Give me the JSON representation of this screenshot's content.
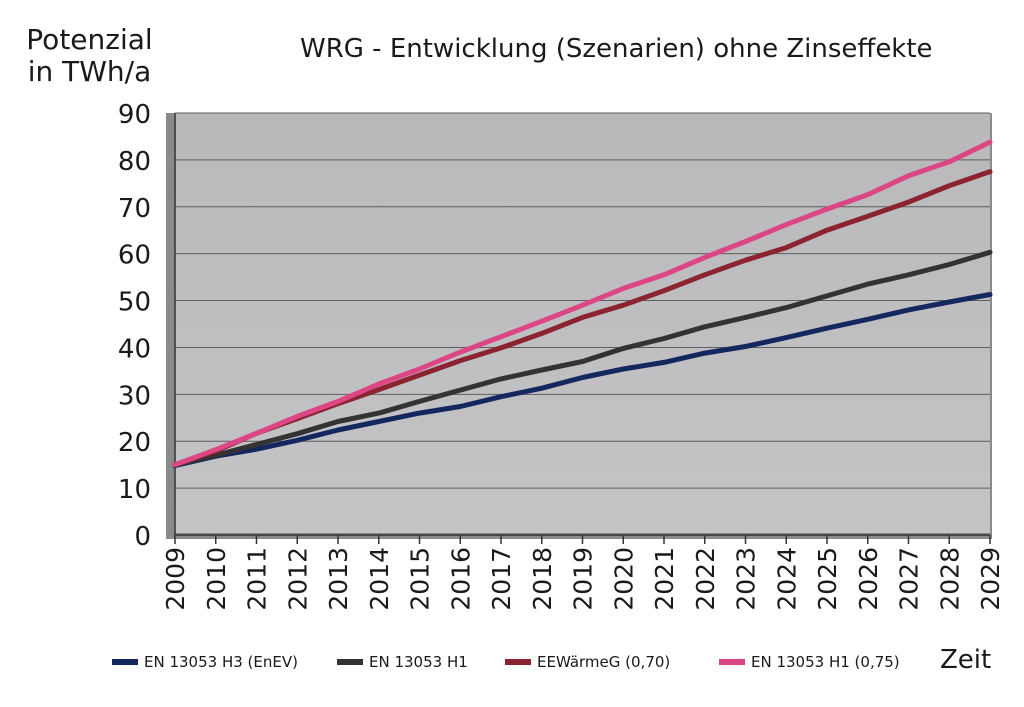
{
  "chart_data": {
    "type": "line",
    "title": "WRG - Entwicklung (Szenarien) ohne Zinseffekte",
    "ylabel": "Potenzial in TWh/a",
    "xlabel": "Zeit",
    "ylim": [
      0,
      90
    ],
    "yticks": [
      "0",
      "10",
      "20",
      "30",
      "40",
      "50",
      "60",
      "70",
      "80",
      "90"
    ],
    "x": [
      "2009",
      "2010",
      "2011",
      "2012",
      "2013",
      "2014",
      "2015",
      "2016",
      "2017",
      "2018",
      "2019",
      "2020",
      "2021",
      "2022",
      "2023",
      "2024",
      "2025",
      "2026",
      "2027",
      "2028",
      "2029"
    ],
    "grid": true,
    "legend_position": "bottom",
    "series": [
      {
        "name": "EN 13053 H3 (EnEV)",
        "color": "#14285f",
        "values": [
          14.8,
          16.8,
          18.3,
          20.2,
          22.4,
          24.2,
          26.0,
          27.4,
          29.5,
          31.3,
          33.6,
          35.4,
          36.8,
          38.8,
          40.2,
          42.1,
          44.1,
          46.0,
          48.0,
          49.7,
          51.3
        ]
      },
      {
        "name": "EN 13053 H1",
        "color": "#333333",
        "values": [
          15.0,
          17.0,
          19.3,
          21.6,
          24.2,
          26.0,
          28.5,
          30.9,
          33.3,
          35.2,
          37.0,
          39.8,
          41.9,
          44.4,
          46.4,
          48.5,
          51.0,
          53.5,
          55.5,
          57.7,
          60.3
        ]
      },
      {
        "name": "EEWärmeG (0,70)",
        "color": "#8c2330",
        "values": [
          15.0,
          17.9,
          21.7,
          24.8,
          28.0,
          31.0,
          34.1,
          37.2,
          39.9,
          43.0,
          46.4,
          49.0,
          52.1,
          55.5,
          58.6,
          61.3,
          65.0,
          68.0,
          71.0,
          74.5,
          77.5
        ]
      },
      {
        "name": "EN 13053 H1 (0,75)",
        "color": "#dc4685",
        "values": [
          15.0,
          18.2,
          21.7,
          25.3,
          28.5,
          32.2,
          35.4,
          39.0,
          42.3,
          45.6,
          49.0,
          52.6,
          55.5,
          59.2,
          62.6,
          66.2,
          69.5,
          72.6,
          76.6,
          79.6,
          83.8
        ]
      }
    ]
  }
}
